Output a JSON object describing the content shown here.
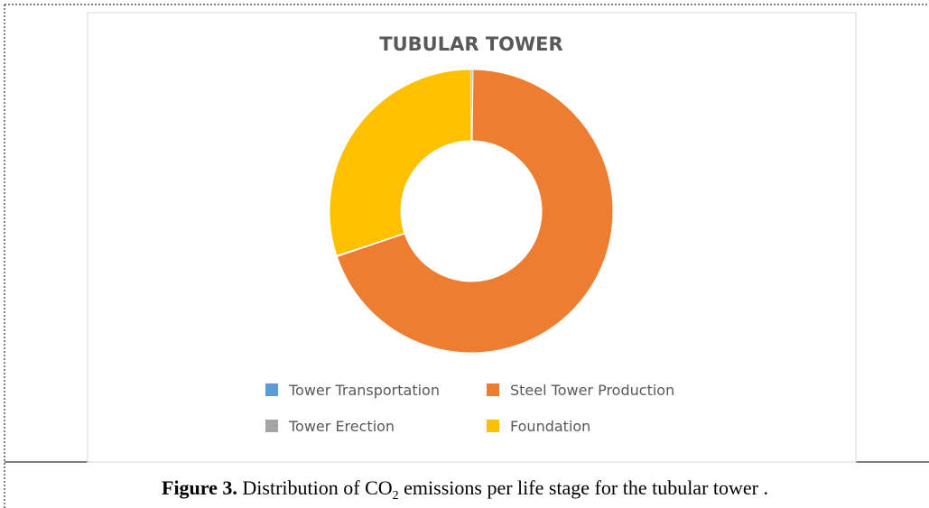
{
  "chart_data": {
    "type": "donut",
    "title": "TUBULAR TOWER",
    "categories": [
      "Tower Transportation",
      "Steel Tower Production",
      "Tower Erection",
      "Foundation"
    ],
    "values": [
      0.2,
      69.6,
      0.1,
      30.1
    ],
    "colors": [
      "#5b9bd5",
      "#ed7d31",
      "#a5a5a5",
      "#ffc000"
    ],
    "legend": "bottom"
  },
  "caption": {
    "label": "Figure 3.",
    "text": "Distribution of CO",
    "subscript": "2",
    "rest": " emissions per life stage for the tubular tower ."
  }
}
